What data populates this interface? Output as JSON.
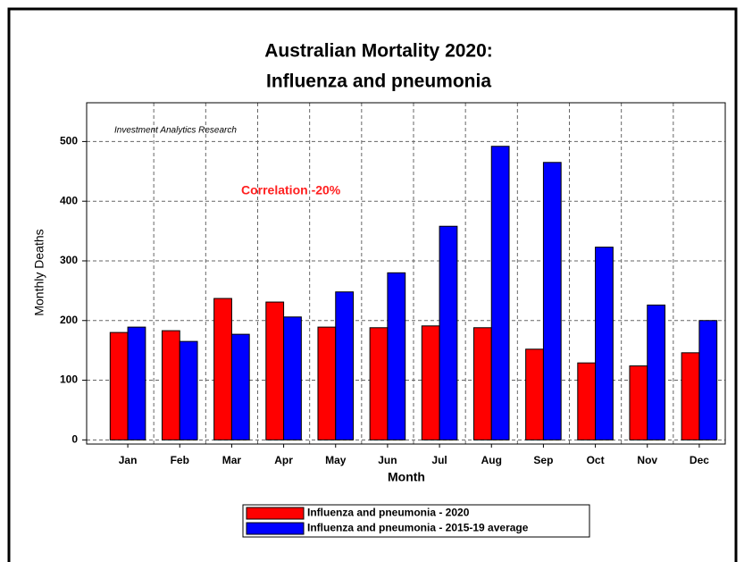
{
  "chart_data": {
    "type": "bar",
    "title": [
      "Australian Mortality 2020:",
      "Influenza and  pneumonia"
    ],
    "annotations": [
      "Investment Analytics Research",
      "Correlation -20%"
    ],
    "x_label": "Month",
    "y_label": "Monthly Deaths",
    "categories": [
      "Jan",
      "Feb",
      "Mar",
      "Apr",
      "May",
      "Jun",
      "Jul",
      "Aug",
      "Sep",
      "Oct",
      "Nov",
      "Dec"
    ],
    "series": [
      {
        "name": "Influenza and pneumonia - 2020",
        "color": "#ff0000",
        "values": [
          180,
          183,
          237,
          231,
          189,
          188,
          191,
          188,
          152,
          129,
          124,
          146
        ]
      },
      {
        "name": "Influenza and pneumonia - 2015-19 average",
        "color": "#0000ff",
        "values": [
          189,
          165,
          177,
          206,
          248,
          280,
          358,
          492,
          465,
          323,
          226,
          200
        ]
      }
    ],
    "ylim": [
      -7,
      565
    ],
    "yticks": [
      0,
      100,
      200,
      300,
      400,
      500
    ],
    "grid": true,
    "legend": "bottom"
  }
}
